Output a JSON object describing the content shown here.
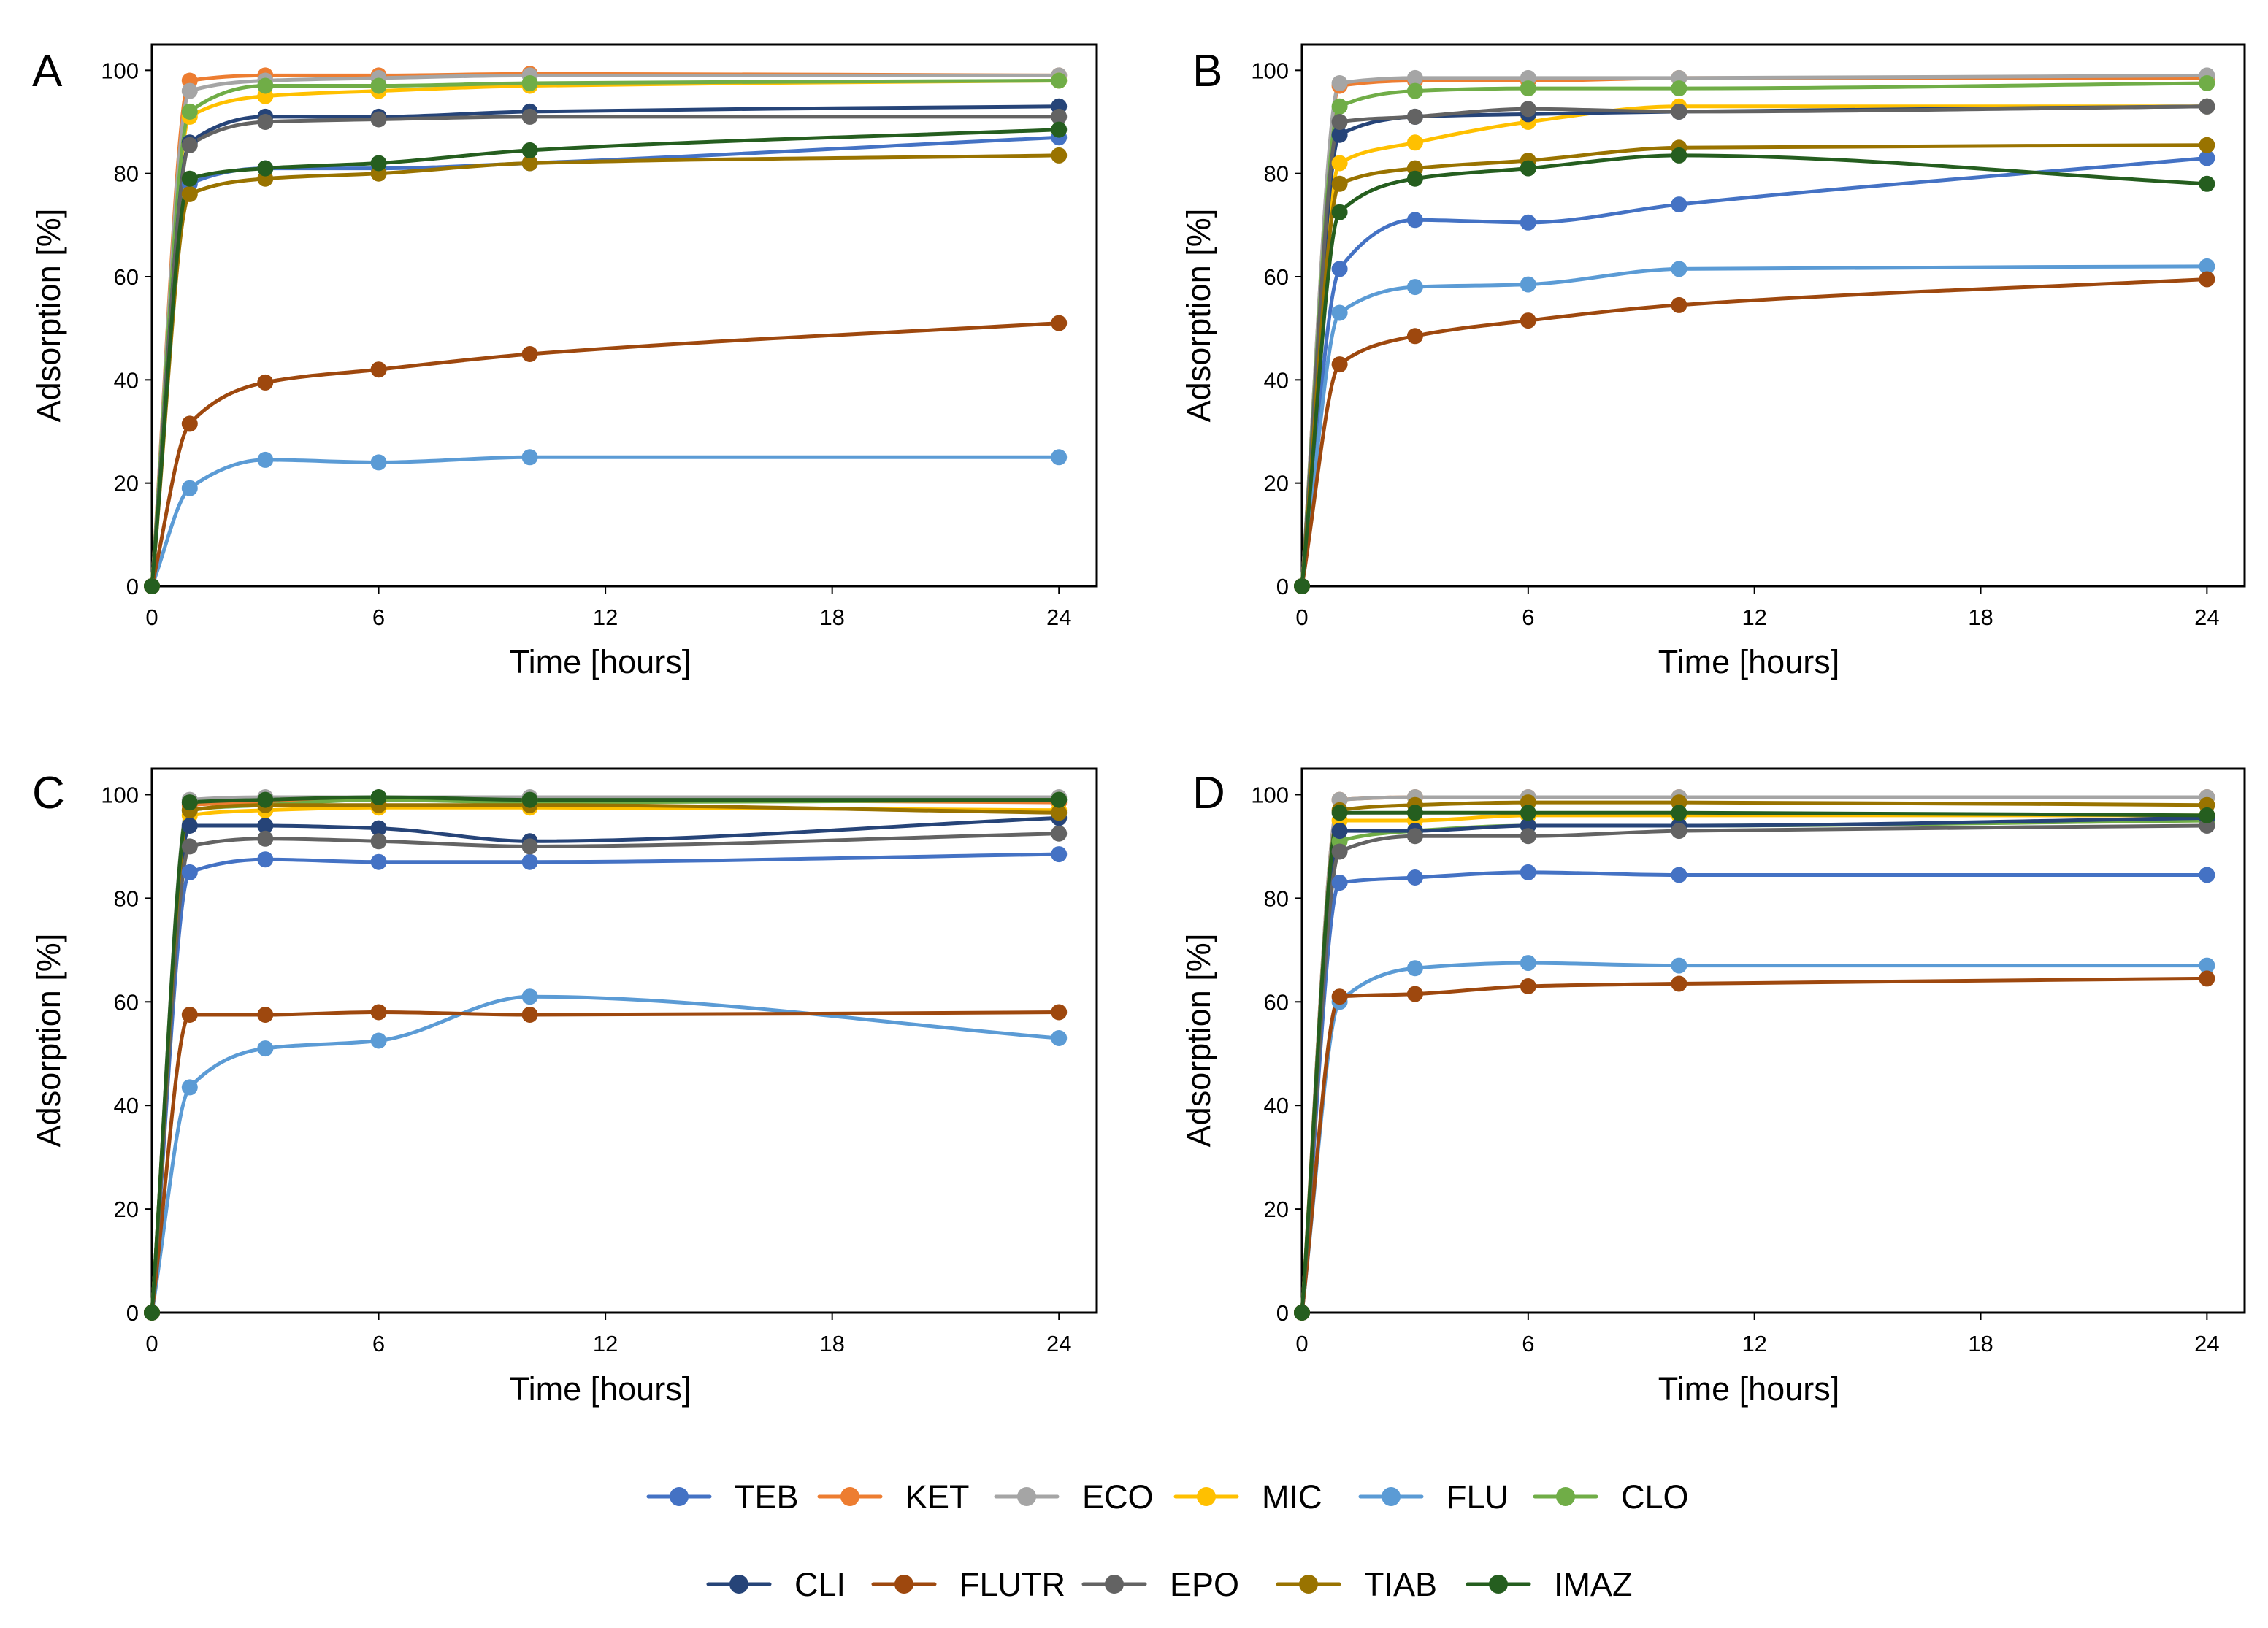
{
  "chart_data": [
    {
      "type": "line",
      "panel": "A",
      "xlabel": "Time [hours]",
      "ylabel": "Adsorption [%]",
      "xlim": [
        0,
        25
      ],
      "ylim": [
        0,
        105
      ],
      "xticks": [
        0,
        6,
        12,
        18,
        24
      ],
      "yticks": [
        0,
        20,
        40,
        60,
        80,
        100
      ],
      "x": [
        0,
        1,
        3,
        6,
        10,
        24
      ],
      "series": [
        {
          "name": "TEB",
          "values": [
            0,
            78,
            81,
            81,
            82,
            87
          ]
        },
        {
          "name": "KET",
          "values": [
            0,
            98,
            99,
            99,
            99.3,
            99
          ]
        },
        {
          "name": "ECO",
          "values": [
            0,
            96,
            98,
            98.5,
            99,
            99
          ]
        },
        {
          "name": "MIC",
          "values": [
            0,
            91,
            95,
            96,
            97,
            98
          ]
        },
        {
          "name": "FLU",
          "values": [
            0,
            19,
            24.5,
            24,
            25,
            25
          ]
        },
        {
          "name": "CLO",
          "values": [
            0,
            92,
            97,
            97,
            97.5,
            98
          ]
        },
        {
          "name": "CLI",
          "values": [
            0,
            86,
            91,
            91,
            92,
            93
          ]
        },
        {
          "name": "FLUTR",
          "values": [
            0,
            31.5,
            39.5,
            42,
            45,
            51
          ]
        },
        {
          "name": "EPO",
          "values": [
            0,
            85.5,
            90,
            90.5,
            91,
            91
          ]
        },
        {
          "name": "TIAB",
          "values": [
            0,
            76,
            79,
            80,
            82,
            83.5
          ]
        },
        {
          "name": "IMAZ",
          "values": [
            0,
            79,
            81,
            82,
            84.5,
            88.5
          ]
        }
      ]
    },
    {
      "type": "line",
      "panel": "B",
      "xlabel": "Time [hours]",
      "ylabel": "Adsorption [%]",
      "xlim": [
        0,
        25
      ],
      "ylim": [
        0,
        105
      ],
      "xticks": [
        0,
        6,
        12,
        18,
        24
      ],
      "yticks": [
        0,
        20,
        40,
        60,
        80,
        100
      ],
      "x": [
        0,
        1,
        3,
        6,
        10,
        24
      ],
      "series": [
        {
          "name": "TEB",
          "values": [
            0,
            61.5,
            71,
            70.5,
            74,
            83
          ]
        },
        {
          "name": "KET",
          "values": [
            0,
            97,
            98,
            98,
            98.5,
            98.5
          ]
        },
        {
          "name": "ECO",
          "values": [
            0,
            97.5,
            98.5,
            98.5,
            98.5,
            99
          ]
        },
        {
          "name": "MIC",
          "values": [
            0,
            82,
            86,
            90,
            93,
            93
          ]
        },
        {
          "name": "FLU",
          "values": [
            0,
            53,
            58,
            58.5,
            61.5,
            62
          ]
        },
        {
          "name": "CLO",
          "values": [
            0,
            93,
            96,
            96.5,
            96.5,
            97.5
          ]
        },
        {
          "name": "CLI",
          "values": [
            0,
            87.5,
            91,
            91.5,
            92,
            93
          ]
        },
        {
          "name": "FLUTR",
          "values": [
            0,
            43,
            48.5,
            51.5,
            54.5,
            59.5
          ]
        },
        {
          "name": "EPO",
          "values": [
            0,
            90,
            91,
            92.5,
            92,
            93
          ]
        },
        {
          "name": "TIAB",
          "values": [
            0,
            78,
            81,
            82.5,
            85,
            85.5
          ]
        },
        {
          "name": "IMAZ",
          "values": [
            0,
            72.5,
            79,
            81,
            83.5,
            78
          ]
        }
      ]
    },
    {
      "type": "line",
      "panel": "C",
      "xlabel": "Time [hours]",
      "ylabel": "Adsorption [%]",
      "xlim": [
        0,
        25
      ],
      "ylim": [
        0,
        105
      ],
      "xticks": [
        0,
        6,
        12,
        18,
        24
      ],
      "yticks": [
        0,
        20,
        40,
        60,
        80,
        100
      ],
      "x": [
        0,
        1,
        3,
        6,
        10,
        24
      ],
      "series": [
        {
          "name": "TEB",
          "values": [
            0,
            85,
            87.5,
            87,
            87,
            88.5
          ]
        },
        {
          "name": "KET",
          "values": [
            0,
            98,
            98.5,
            99,
            99,
            98.5
          ]
        },
        {
          "name": "ECO",
          "values": [
            0,
            99,
            99.5,
            99.5,
            99.5,
            99.5
          ]
        },
        {
          "name": "MIC",
          "values": [
            0,
            96,
            97,
            97.5,
            97.5,
            97
          ]
        },
        {
          "name": "FLU",
          "values": [
            0,
            43.5,
            51,
            52.5,
            61,
            53
          ]
        },
        {
          "name": "CLO",
          "values": [
            0,
            97,
            98,
            99,
            98.5,
            99
          ]
        },
        {
          "name": "CLI",
          "values": [
            0,
            94,
            94,
            93.5,
            91,
            95.5
          ]
        },
        {
          "name": "FLUTR",
          "values": [
            0,
            57.5,
            57.5,
            58,
            57.5,
            58
          ]
        },
        {
          "name": "EPO",
          "values": [
            0,
            90,
            91.5,
            91,
            90,
            92.5
          ]
        },
        {
          "name": "TIAB",
          "values": [
            0,
            97,
            98,
            98,
            98,
            96.5
          ]
        },
        {
          "name": "IMAZ",
          "values": [
            0,
            98.5,
            99,
            99.5,
            99,
            99
          ]
        }
      ]
    },
    {
      "type": "line",
      "panel": "D",
      "xlabel": "Time [hours]",
      "ylabel": "Adsorption [%]",
      "xlim": [
        0,
        25
      ],
      "ylim": [
        0,
        105
      ],
      "xticks": [
        0,
        6,
        12,
        18,
        24
      ],
      "yticks": [
        0,
        20,
        40,
        60,
        80,
        100
      ],
      "x": [
        0,
        1,
        3,
        6,
        10,
        24
      ],
      "series": [
        {
          "name": "TEB",
          "values": [
            0,
            83,
            84,
            85,
            84.5,
            84.5
          ]
        },
        {
          "name": "KET",
          "values": [
            0,
            99,
            99.5,
            99.5,
            99.5,
            99.5
          ]
        },
        {
          "name": "ECO",
          "values": [
            0,
            99,
            99.5,
            99.5,
            99.5,
            99.5
          ]
        },
        {
          "name": "MIC",
          "values": [
            0,
            95,
            95,
            96,
            96,
            96
          ]
        },
        {
          "name": "FLU",
          "values": [
            0,
            60,
            66.5,
            67.5,
            67,
            67
          ]
        },
        {
          "name": "CLO",
          "values": [
            0,
            91,
            93,
            94,
            94,
            95
          ]
        },
        {
          "name": "CLI",
          "values": [
            0,
            93,
            93,
            94,
            94,
            95.5
          ]
        },
        {
          "name": "FLUTR",
          "values": [
            0,
            61,
            61.5,
            63,
            63.5,
            64.5
          ]
        },
        {
          "name": "EPO",
          "values": [
            0,
            89,
            92,
            92,
            93,
            94
          ]
        },
        {
          "name": "TIAB",
          "values": [
            0,
            97,
            98,
            98.5,
            98.5,
            98
          ]
        },
        {
          "name": "IMAZ",
          "values": [
            0,
            96.5,
            96.5,
            96.5,
            96.5,
            96
          ]
        }
      ]
    }
  ],
  "legend": [
    {
      "name": "TEB",
      "color": "#4472C4"
    },
    {
      "name": "KET",
      "color": "#ED7D31"
    },
    {
      "name": "ECO",
      "color": "#A5A5A5"
    },
    {
      "name": "MIC",
      "color": "#FFC000"
    },
    {
      "name": "FLU",
      "color": "#5B9BD5"
    },
    {
      "name": "CLO",
      "color": "#70AD47"
    },
    {
      "name": "CLI",
      "color": "#264478"
    },
    {
      "name": "FLUTR",
      "color": "#9E480E"
    },
    {
      "name": "EPO",
      "color": "#636363"
    },
    {
      "name": "TIAB",
      "color": "#997300"
    },
    {
      "name": "IMAZ",
      "color": "#255E1F"
    }
  ]
}
